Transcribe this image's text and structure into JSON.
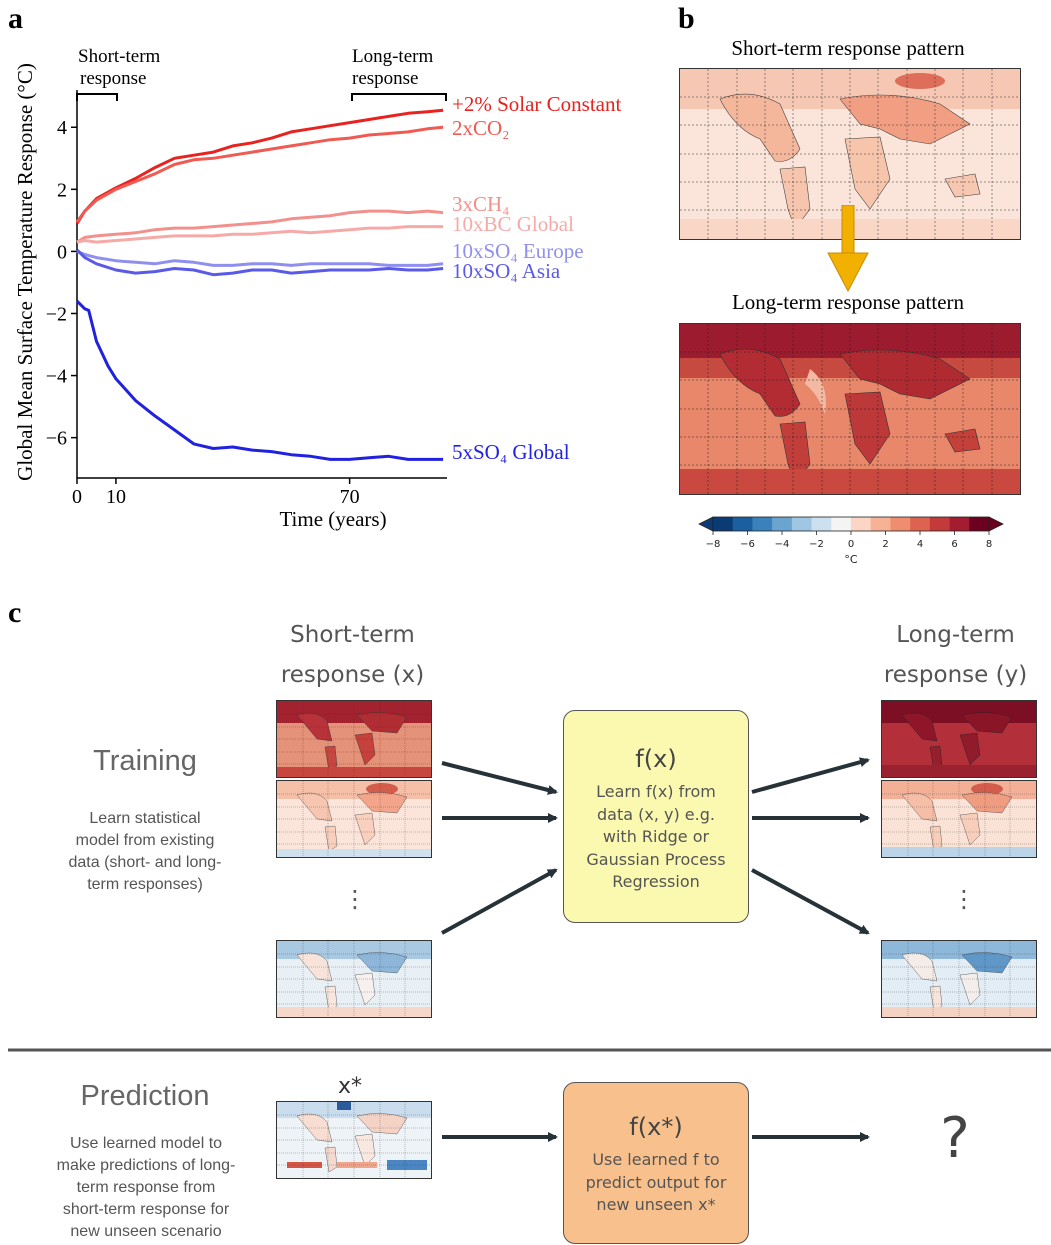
{
  "panels": {
    "a": "a",
    "b": "b",
    "c": "c"
  },
  "panel_a": {
    "annotation_short": [
      "Short-term",
      "response"
    ],
    "annotation_long": [
      "Long-term",
      "response"
    ]
  },
  "chart_data": {
    "type": "line",
    "title": "",
    "xlabel": "Time (years)",
    "ylabel": "Global Mean Surface Temperature Response (°C)",
    "xlim": [
      0,
      95
    ],
    "ylim": [
      -7.3,
      5.2
    ],
    "xticks": [
      0,
      10,
      70
    ],
    "yticks": [
      -6,
      -4,
      -2,
      0,
      2,
      4
    ],
    "grid": false,
    "series": [
      {
        "name": "+2% Solar Constant",
        "color": "#e8231f",
        "x": [
          0,
          2,
          5,
          10,
          15,
          20,
          25,
          30,
          35,
          40,
          45,
          50,
          55,
          60,
          65,
          70,
          75,
          80,
          85,
          90,
          94
        ],
        "y": [
          0.9,
          1.3,
          1.7,
          2.05,
          2.35,
          2.7,
          3.0,
          3.1,
          3.2,
          3.4,
          3.5,
          3.65,
          3.85,
          3.95,
          4.05,
          4.15,
          4.25,
          4.35,
          4.45,
          4.5,
          4.55
        ]
      },
      {
        "name": "2xCO2",
        "color": "#ef5a52",
        "x": [
          0,
          2,
          5,
          10,
          15,
          20,
          25,
          30,
          35,
          40,
          45,
          50,
          55,
          60,
          65,
          70,
          75,
          80,
          85,
          90,
          94
        ],
        "y": [
          0.95,
          1.3,
          1.65,
          2.0,
          2.25,
          2.5,
          2.8,
          2.95,
          3.0,
          3.1,
          3.2,
          3.3,
          3.4,
          3.5,
          3.6,
          3.65,
          3.75,
          3.8,
          3.85,
          3.95,
          4.0
        ]
      },
      {
        "name": "3xCH4",
        "color": "#f2908c",
        "x": [
          0,
          2,
          5,
          10,
          15,
          20,
          25,
          30,
          35,
          40,
          45,
          50,
          55,
          60,
          65,
          70,
          75,
          80,
          85,
          90,
          94
        ],
        "y": [
          0.3,
          0.45,
          0.5,
          0.55,
          0.6,
          0.7,
          0.75,
          0.75,
          0.8,
          0.85,
          0.9,
          0.95,
          1.05,
          1.1,
          1.15,
          1.25,
          1.3,
          1.3,
          1.25,
          1.3,
          1.25
        ]
      },
      {
        "name": "10xBC Global",
        "color": "#f6aaa8",
        "x": [
          0,
          2,
          5,
          10,
          15,
          20,
          25,
          30,
          35,
          40,
          45,
          50,
          55,
          60,
          65,
          70,
          75,
          80,
          85,
          90,
          94
        ],
        "y": [
          0.3,
          0.35,
          0.3,
          0.35,
          0.4,
          0.45,
          0.5,
          0.5,
          0.5,
          0.55,
          0.55,
          0.6,
          0.65,
          0.6,
          0.65,
          0.7,
          0.75,
          0.75,
          0.8,
          0.8,
          0.8
        ]
      },
      {
        "name": "10xSO4 Europe",
        "color": "#8f8ff0",
        "x": [
          0,
          2,
          5,
          10,
          15,
          20,
          25,
          30,
          35,
          40,
          45,
          50,
          55,
          60,
          65,
          70,
          75,
          80,
          85,
          90,
          94
        ],
        "y": [
          0.0,
          -0.1,
          -0.2,
          -0.3,
          -0.35,
          -0.4,
          -0.3,
          -0.35,
          -0.45,
          -0.45,
          -0.4,
          -0.4,
          -0.45,
          -0.4,
          -0.4,
          -0.4,
          -0.4,
          -0.45,
          -0.45,
          -0.45,
          -0.4
        ]
      },
      {
        "name": "10xSO4 Asia",
        "color": "#5a5ae8",
        "x": [
          0,
          2,
          5,
          10,
          15,
          20,
          25,
          30,
          35,
          40,
          45,
          50,
          55,
          60,
          65,
          70,
          75,
          80,
          85,
          90,
          94
        ],
        "y": [
          0.05,
          -0.2,
          -0.4,
          -0.6,
          -0.7,
          -0.65,
          -0.55,
          -0.6,
          -0.75,
          -0.7,
          -0.6,
          -0.6,
          -0.7,
          -0.65,
          -0.6,
          -0.6,
          -0.6,
          -0.55,
          -0.6,
          -0.6,
          -0.55
        ]
      },
      {
        "name": "5xSO4 Global",
        "color": "#2121e0",
        "x": [
          0,
          2,
          3,
          5,
          8,
          10,
          15,
          20,
          25,
          30,
          35,
          40,
          45,
          50,
          55,
          60,
          65,
          70,
          75,
          80,
          85,
          90,
          94
        ],
        "y": [
          -1.6,
          -1.85,
          -1.9,
          -2.9,
          -3.7,
          -4.1,
          -4.8,
          -5.3,
          -5.75,
          -6.2,
          -6.35,
          -6.3,
          -6.4,
          -6.45,
          -6.55,
          -6.6,
          -6.7,
          -6.7,
          -6.65,
          -6.6,
          -6.7,
          -6.7,
          -6.7
        ]
      }
    ],
    "legend_labels": [
      {
        "text": "+2% Solar Constant",
        "color": "#e8231f"
      },
      {
        "text": "2xCO₂",
        "color": "#ef5a52"
      },
      {
        "text": "3xCH₄",
        "color": "#f2908c"
      },
      {
        "text": "10xBC Global",
        "color": "#f6aaa8"
      },
      {
        "text": "10xSO₄ Europe",
        "color": "#8f8ff0"
      },
      {
        "text": "10xSO₄ Asia",
        "color": "#5a5ae8"
      },
      {
        "text": "5xSO₄ Global",
        "color": "#2121e0"
      }
    ]
  },
  "panel_b": {
    "short_title": "Short-term response pattern",
    "long_title": "Long-term response pattern",
    "colorbar": {
      "ticks": [
        "−8",
        "−6",
        "−4",
        "−2",
        "0",
        "2",
        "4",
        "6",
        "8"
      ],
      "unit": "°C",
      "colors": [
        "#0b3b74",
        "#1c5fa0",
        "#3b82bd",
        "#6aa4cf",
        "#9fc6e2",
        "#cde0ef",
        "#f4f4f4",
        "#fbd6c4",
        "#f7b296",
        "#ef8e6e",
        "#dd6350",
        "#c43a3a",
        "#a31c2f",
        "#6b0020"
      ]
    }
  },
  "panel_c": {
    "short_header": [
      "Short-term",
      "response (x)"
    ],
    "long_header": [
      "Long-term",
      "response (y)"
    ],
    "training_title": "Training",
    "training_desc": [
      "Learn statistical",
      "model from existing",
      "data (short- and long-",
      "term responses)"
    ],
    "fx_title": "f(x)",
    "fx_desc": [
      "Learn f(x) from",
      "data (x, y) e.g.",
      "with Ridge or",
      "Gaussian Process",
      "Regression"
    ],
    "ellipsis": "⋮",
    "prediction_title": "Prediction",
    "xstar_label": "x*",
    "prediction_desc": [
      "Use learned model to",
      "make predictions of long-",
      "term response from",
      "short-term response for",
      "new unseen scenario"
    ],
    "fxstar_title": "f(x*)",
    "fxstar_desc": [
      "Use learned f to",
      "predict output for",
      "new unseen x*"
    ],
    "question_mark": "?",
    "colors": {
      "train_box": "#fbf8b0",
      "pred_box": "#f8c08c",
      "arrow": "#263238",
      "orange_arrow": "#f2b100"
    }
  }
}
